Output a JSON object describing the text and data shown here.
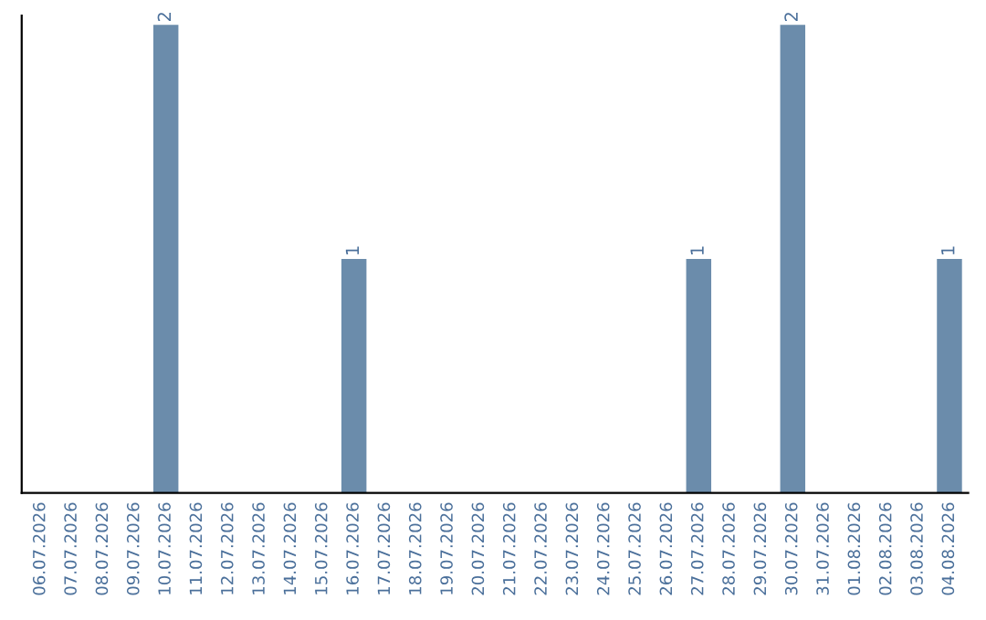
{
  "chart_data": {
    "type": "bar",
    "categories": [
      "06.07.2026",
      "07.07.2026",
      "08.07.2026",
      "09.07.2026",
      "10.07.2026",
      "11.07.2026",
      "12.07.2026",
      "13.07.2026",
      "14.07.2026",
      "15.07.2026",
      "16.07.2026",
      "17.07.2026",
      "18.07.2026",
      "19.07.2026",
      "20.07.2026",
      "21.07.2026",
      "22.07.2026",
      "23.07.2026",
      "24.07.2026",
      "25.07.2026",
      "26.07.2026",
      "27.07.2026",
      "28.07.2026",
      "29.07.2026",
      "30.07.2026",
      "31.07.2026",
      "01.08.2026",
      "02.08.2026",
      "03.08.2026",
      "04.08.2026"
    ],
    "values": [
      0,
      0,
      0,
      0,
      2,
      0,
      0,
      0,
      0,
      0,
      1,
      0,
      0,
      0,
      0,
      0,
      0,
      0,
      0,
      0,
      0,
      1,
      0,
      0,
      2,
      0,
      0,
      0,
      0,
      1
    ],
    "value_labels": [
      null,
      null,
      null,
      null,
      "2",
      null,
      null,
      null,
      null,
      null,
      "1",
      null,
      null,
      null,
      null,
      null,
      null,
      null,
      null,
      null,
      null,
      "1",
      null,
      null,
      "2",
      null,
      null,
      null,
      null,
      "1"
    ],
    "color": "#6b8cab",
    "tick_labels": "x"
  }
}
